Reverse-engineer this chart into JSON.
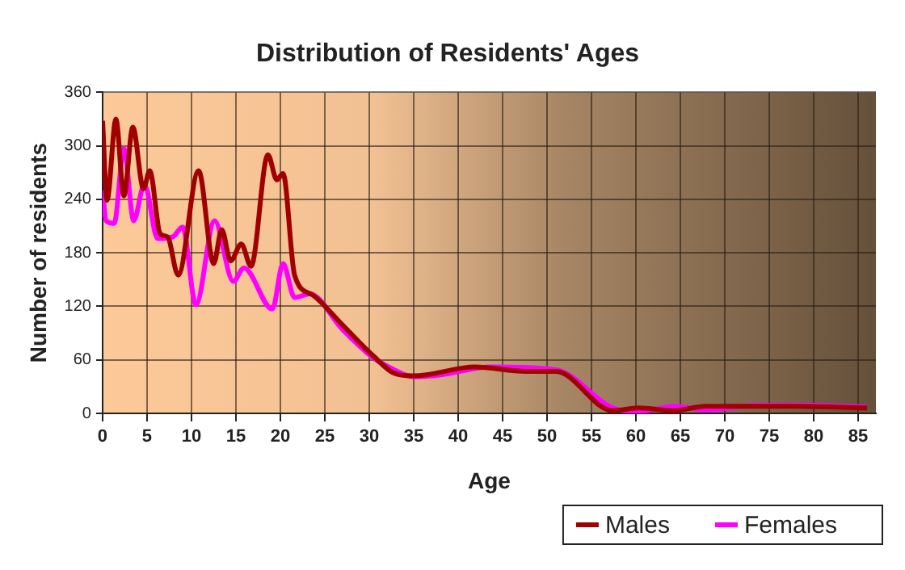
{
  "chart_data": {
    "type": "line",
    "title": "Distribution of Residents' Ages",
    "xlabel": "Age",
    "ylabel": "Number of residents",
    "xlim": [
      0,
      87
    ],
    "xticks": [
      0,
      5,
      10,
      15,
      20,
      25,
      30,
      35,
      40,
      45,
      50,
      55,
      60,
      65,
      70,
      75,
      80,
      85
    ],
    "ylim": [
      0,
      360
    ],
    "yticks": [
      0,
      60,
      120,
      180,
      240,
      300,
      360
    ],
    "grid": true,
    "legend": "bottom right",
    "marker": "none",
    "line_style": "solid",
    "series": [
      {
        "name": "Males",
        "color": "#a00000",
        "x": [
          0,
          0.5,
          1.5,
          2.4,
          3.4,
          4.6,
          5.3,
          6.5,
          7.3,
          8.5,
          10.8,
          12.5,
          13.4,
          14.4,
          15.6,
          16.7,
          18.6,
          19.6,
          20.3,
          21.6,
          23.6,
          27,
          30.5,
          32.8,
          35,
          41.9,
          47.6,
          51,
          57.4,
          60.3,
          64.3,
          67.8,
          78,
          86
        ],
        "values": [
          328,
          239,
          330,
          244,
          321,
          252,
          272,
          201,
          198,
          155,
          272,
          168,
          206,
          171,
          190,
          165,
          290,
          262,
          269,
          155,
          133,
          99,
          64,
          45,
          42,
          52,
          47,
          47,
          3,
          6,
          3,
          8,
          8,
          6
        ]
      },
      {
        "name": "Females",
        "color": "#ff00ff",
        "x": [
          0,
          0.4,
          1.3,
          2.4,
          3.5,
          4.7,
          6.2,
          7.9,
          9,
          10.5,
          12.6,
          14.7,
          15.9,
          19.1,
          20.3,
          21.6,
          23.3,
          27,
          30.5,
          32.8,
          35,
          37.9,
          43.7,
          51,
          57.4,
          60.3,
          64.3,
          67.8,
          73.6,
          80,
          86
        ],
        "values": [
          250,
          216,
          213,
          297,
          216,
          257,
          196,
          198,
          209,
          122,
          216,
          148,
          163,
          117,
          168,
          130,
          134,
          94,
          62,
          49,
          41,
          43,
          52,
          49,
          6,
          2,
          8,
          4,
          9,
          9,
          7
        ]
      }
    ]
  }
}
